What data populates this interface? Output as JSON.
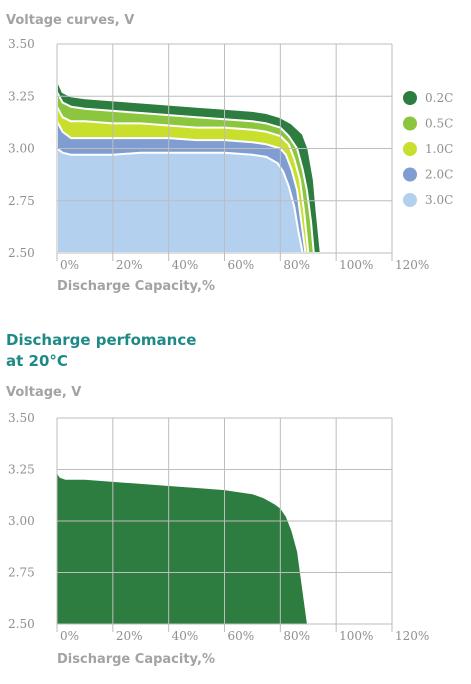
{
  "section_heading": [
    "Discharge perfomance",
    "at 20°C"
  ],
  "chart_data": [
    {
      "type": "area",
      "title": "Voltage curves, V",
      "xlabel": "Discharge Capacity,%",
      "ylabel": "",
      "xlim": [
        0,
        120
      ],
      "ylim": [
        2.5,
        3.5
      ],
      "x_ticks": [
        "0%",
        "20%",
        "40%",
        "60%",
        "80%",
        "100%",
        "120%"
      ],
      "y_ticks": [
        "3.50",
        "3.25",
        "3.00",
        "2.75",
        "2.50"
      ],
      "grid": true,
      "legend_position": "right",
      "series": [
        {
          "name": "0.2C",
          "color": "#2e7d40",
          "x": [
            0,
            2,
            5,
            10,
            20,
            30,
            40,
            50,
            60,
            70,
            75,
            80,
            84,
            88,
            90,
            92,
            93,
            94.5
          ],
          "values": [
            3.33,
            3.27,
            3.25,
            3.24,
            3.23,
            3.22,
            3.21,
            3.2,
            3.19,
            3.18,
            3.17,
            3.15,
            3.12,
            3.07,
            3.0,
            2.85,
            2.7,
            2.5
          ]
        },
        {
          "name": "0.5C",
          "color": "#8cc63f",
          "x": [
            0,
            2,
            5,
            10,
            20,
            30,
            40,
            50,
            60,
            70,
            75,
            80,
            83,
            86,
            88,
            89.5,
            91,
            92
          ],
          "values": [
            3.27,
            3.22,
            3.2,
            3.19,
            3.18,
            3.17,
            3.16,
            3.15,
            3.14,
            3.13,
            3.12,
            3.1,
            3.06,
            3.0,
            2.9,
            2.8,
            2.65,
            2.5
          ]
        },
        {
          "name": "1.0C",
          "color": "#c9df2e",
          "x": [
            0,
            2,
            5,
            10,
            20,
            30,
            40,
            50,
            60,
            70,
            75,
            80,
            83,
            85,
            87,
            88.5,
            90
          ],
          "values": [
            3.2,
            3.15,
            3.13,
            3.13,
            3.12,
            3.12,
            3.11,
            3.1,
            3.1,
            3.09,
            3.08,
            3.06,
            3.02,
            2.95,
            2.85,
            2.7,
            2.5
          ]
        },
        {
          "name": "2.0C",
          "color": "#7f9dd1",
          "x": [
            0,
            2,
            5,
            10,
            20,
            30,
            40,
            50,
            60,
            70,
            75,
            80,
            82,
            84,
            86,
            87.5,
            89
          ],
          "values": [
            3.13,
            3.08,
            3.05,
            3.05,
            3.05,
            3.05,
            3.05,
            3.04,
            3.04,
            3.03,
            3.02,
            3.0,
            2.97,
            2.9,
            2.8,
            2.65,
            2.5
          ]
        },
        {
          "name": "3.0C",
          "color": "#b3d0ef",
          "x": [
            0,
            2,
            5,
            10,
            20,
            30,
            40,
            50,
            60,
            70,
            75,
            79,
            81,
            83,
            85,
            86.5,
            88
          ],
          "values": [
            3.0,
            2.98,
            2.97,
            2.97,
            2.97,
            2.98,
            2.98,
            2.98,
            2.98,
            2.97,
            2.96,
            2.93,
            2.89,
            2.82,
            2.72,
            2.6,
            2.5
          ]
        }
      ]
    },
    {
      "type": "area",
      "title": "Voltage, V",
      "xlabel": "Discharge Capacity,%",
      "ylabel": "",
      "xlim": [
        0,
        120
      ],
      "ylim": [
        2.5,
        3.5
      ],
      "x_ticks": [
        "0%",
        "20%",
        "40%",
        "60%",
        "80%",
        "100%",
        "120%"
      ],
      "y_ticks": [
        "3.50",
        "3.25",
        "3.00",
        "2.75",
        "2.50"
      ],
      "grid": true,
      "series": [
        {
          "color": "#2e7d40",
          "x": [
            0,
            1,
            3,
            10,
            20,
            30,
            40,
            50,
            60,
            65,
            70,
            74,
            78,
            80,
            82,
            84,
            86,
            87,
            88.5,
            89.5
          ],
          "values": [
            3.23,
            3.21,
            3.2,
            3.2,
            3.19,
            3.18,
            3.17,
            3.16,
            3.15,
            3.14,
            3.13,
            3.11,
            3.08,
            3.06,
            3.02,
            2.95,
            2.85,
            2.75,
            2.6,
            2.5
          ]
        }
      ]
    }
  ]
}
